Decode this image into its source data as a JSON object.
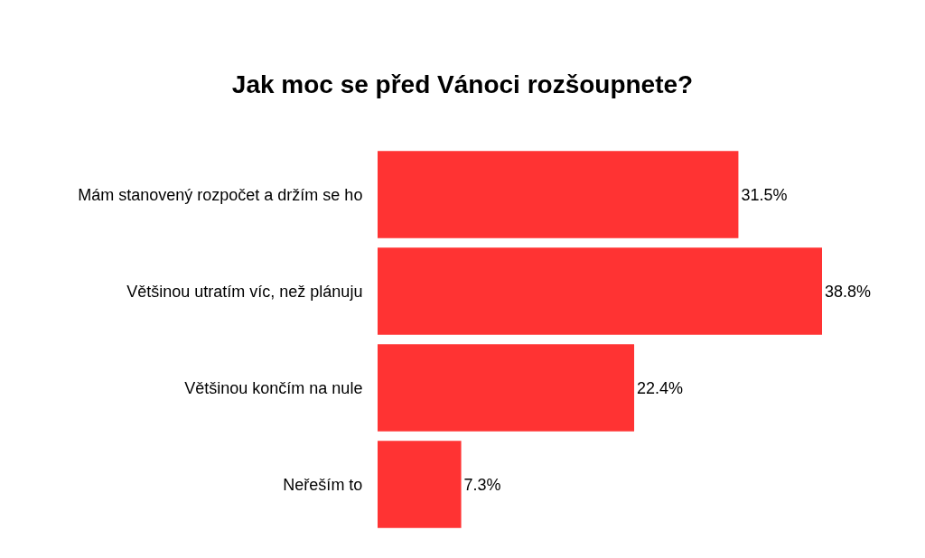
{
  "chart_data": {
    "type": "bar",
    "orientation": "horizontal",
    "title": "Jak moc se před Vánoci rozšoupnete?",
    "categories": [
      "Mám stanovený rozpočet a držím se ho",
      "Většinou utratím víc, než plánuju",
      "Většinou končím na nule",
      "Neřeším to"
    ],
    "values": [
      31.5,
      38.8,
      22.4,
      7.3
    ],
    "value_labels": [
      "31.5%",
      "38.8%",
      "22.4%",
      "7.3%"
    ],
    "color": "#ff3333",
    "tick_labels": "y"
  }
}
